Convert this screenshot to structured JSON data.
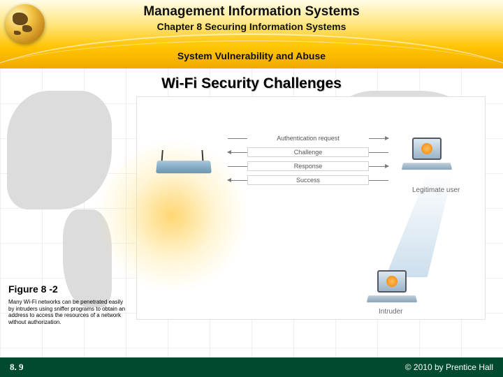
{
  "header": {
    "main_title": "Management Information Systems",
    "chapter": "Chapter 8 Securing Information Systems",
    "section": "System Vulnerability and Abuse",
    "colors": {
      "gradient_top": "#fffde8",
      "gradient_mid": "#ffe680",
      "gradient_low": "#ffc300",
      "gradient_bottom": "#f0a500"
    }
  },
  "slide": {
    "title": "Wi-Fi Security Challenges"
  },
  "diagram": {
    "type": "infographic",
    "background_color": "#ffffff",
    "glow_color": "#ffd264",
    "router_color": "#6a94b0",
    "laptop_color": "#9ab4c8",
    "beam_color": "#aac8e1",
    "messages": [
      {
        "label": "Authentication request",
        "direction": "right",
        "border": false
      },
      {
        "label": "Challenge",
        "direction": "left",
        "border": true
      },
      {
        "label": "Response",
        "direction": "right",
        "border": true
      },
      {
        "label": "Success",
        "direction": "left",
        "border": true
      }
    ],
    "actors": {
      "legitimate": "Legitimate user",
      "intruder": "Intruder"
    },
    "message_fontsize": 9,
    "label_color": "#666666"
  },
  "figure": {
    "label": "Figure 8 -2",
    "caption": "Many Wi-Fi networks can be penetrated easily by intruders using sniffer programs to obtain an address to access the resources of a network without authorization."
  },
  "footer": {
    "page": "8. 9",
    "copyright": "© 2010 by Prentice Hall",
    "background_color": "#004b2f",
    "text_color": "#ffffff"
  }
}
